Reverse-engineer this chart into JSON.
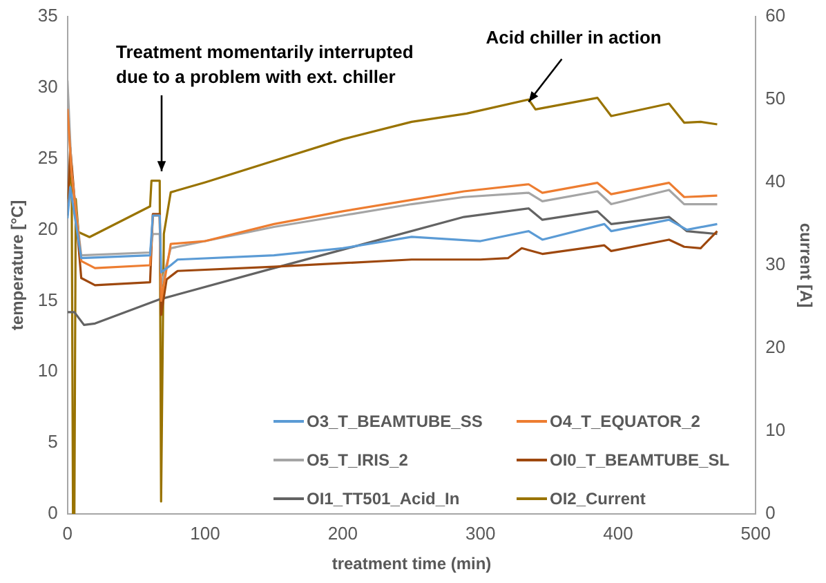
{
  "chart_data": {
    "type": "line",
    "xlabel": "treatment time (min)",
    "ylabel": "temperature [°C]",
    "y2label": "current [A]",
    "xlim": [
      0,
      500
    ],
    "xticks": [
      0,
      100,
      200,
      300,
      400,
      500
    ],
    "ylim": [
      0,
      35
    ],
    "yticks": [
      0,
      5,
      10,
      15,
      20,
      25,
      30,
      35
    ],
    "y2lim": [
      0,
      60
    ],
    "y2ticks": [
      0,
      10,
      20,
      30,
      40,
      50,
      60
    ],
    "grid": false,
    "legend": "bottom right",
    "marker": "none",
    "line_style": "solid",
    "annotations": [
      "Treatment momentarily interrupted due to a problem with ext. chiller",
      {
        "text": "Acid chiller in action",
        "x": 335,
        "y": 29
      }
    ],
    "series": [
      {
        "name": "O3_T_BEAMTUBE_SS",
        "color": "#5b9bd5",
        "x": [
          0,
          2,
          10,
          60,
          62,
          67,
          68,
          75,
          80,
          150,
          200,
          250,
          300,
          335,
          345,
          390,
          395,
          437,
          450,
          472
        ],
        "values": [
          20.8,
          23,
          18,
          18.2,
          21,
          21,
          17,
          17.5,
          17.9,
          18.2,
          18.7,
          19.5,
          19.2,
          19.9,
          19.3,
          20.4,
          19.9,
          20.7,
          20,
          20.4
        ]
      },
      {
        "name": "O4_T_EQUATOR_2",
        "color": "#ed7d31",
        "x": [
          0,
          3,
          10,
          20,
          60,
          62,
          67,
          68,
          75,
          100,
          150,
          200,
          250,
          288,
          335,
          345,
          385,
          395,
          437,
          448,
          472
        ],
        "values": [
          28.5,
          24,
          17.8,
          17.3,
          17.5,
          21,
          21,
          15,
          19,
          19.2,
          20.4,
          21.3,
          22.1,
          22.7,
          23.2,
          22.6,
          23.3,
          22.5,
          23.3,
          22.3,
          22.4
        ]
      },
      {
        "name": "O5_T_IRIS_2",
        "color": "#a5a5a5",
        "x": [
          0,
          3,
          10,
          60,
          62,
          67,
          68,
          75,
          100,
          150,
          200,
          250,
          288,
          335,
          345,
          385,
          395,
          437,
          448,
          472
        ],
        "values": [
          30.5,
          24,
          18.2,
          18.4,
          19.7,
          19.7,
          16,
          18.7,
          19.2,
          20.2,
          21,
          21.8,
          22.3,
          22.6,
          22,
          22.7,
          21.8,
          22.8,
          21.8,
          21.8
        ]
      },
      {
        "name": "OI0_T_BEAMTUBE_SL",
        "color": "#9e480e",
        "x": [
          0,
          2,
          10,
          20,
          60,
          62,
          67,
          68,
          72,
          80,
          150,
          250,
          300,
          320,
          330,
          345,
          390,
          395,
          437,
          448,
          460,
          472
        ],
        "values": [
          21,
          25.8,
          16.6,
          16.1,
          16.3,
          21.1,
          21.1,
          14,
          16.5,
          17.1,
          17.4,
          17.9,
          17.9,
          18,
          18.7,
          18.3,
          18.9,
          18.5,
          19.3,
          18.8,
          18.7,
          19.9
        ]
      },
      {
        "name": "OI1_TT501_Acid_In",
        "color": "#636363",
        "x": [
          0,
          5,
          12,
          20,
          67,
          150,
          200,
          288,
          335,
          345,
          385,
          395,
          437,
          450,
          472
        ],
        "values": [
          14.2,
          14.2,
          13.3,
          13.4,
          15.1,
          17.3,
          18.6,
          20.9,
          21.5,
          20.7,
          21.3,
          20.4,
          20.9,
          19.9,
          19.7
        ]
      },
      {
        "name": "OI2_Current",
        "color": "#997300",
        "axis": "y2",
        "x": [
          0,
          3,
          4,
          5,
          6,
          8,
          16,
          60,
          61,
          67,
          68,
          70,
          75,
          100,
          150,
          200,
          250,
          290,
          335,
          340,
          385,
          395,
          437,
          448,
          460,
          472
        ],
        "values": [
          38,
          42,
          0,
          0,
          38,
          34,
          33.4,
          37.1,
          40.2,
          40.2,
          1.5,
          33.8,
          38.8,
          40,
          42.6,
          45.2,
          47.3,
          48.3,
          50,
          48.8,
          50.2,
          48,
          49.5,
          47.2,
          47.3,
          47
        ]
      }
    ]
  }
}
